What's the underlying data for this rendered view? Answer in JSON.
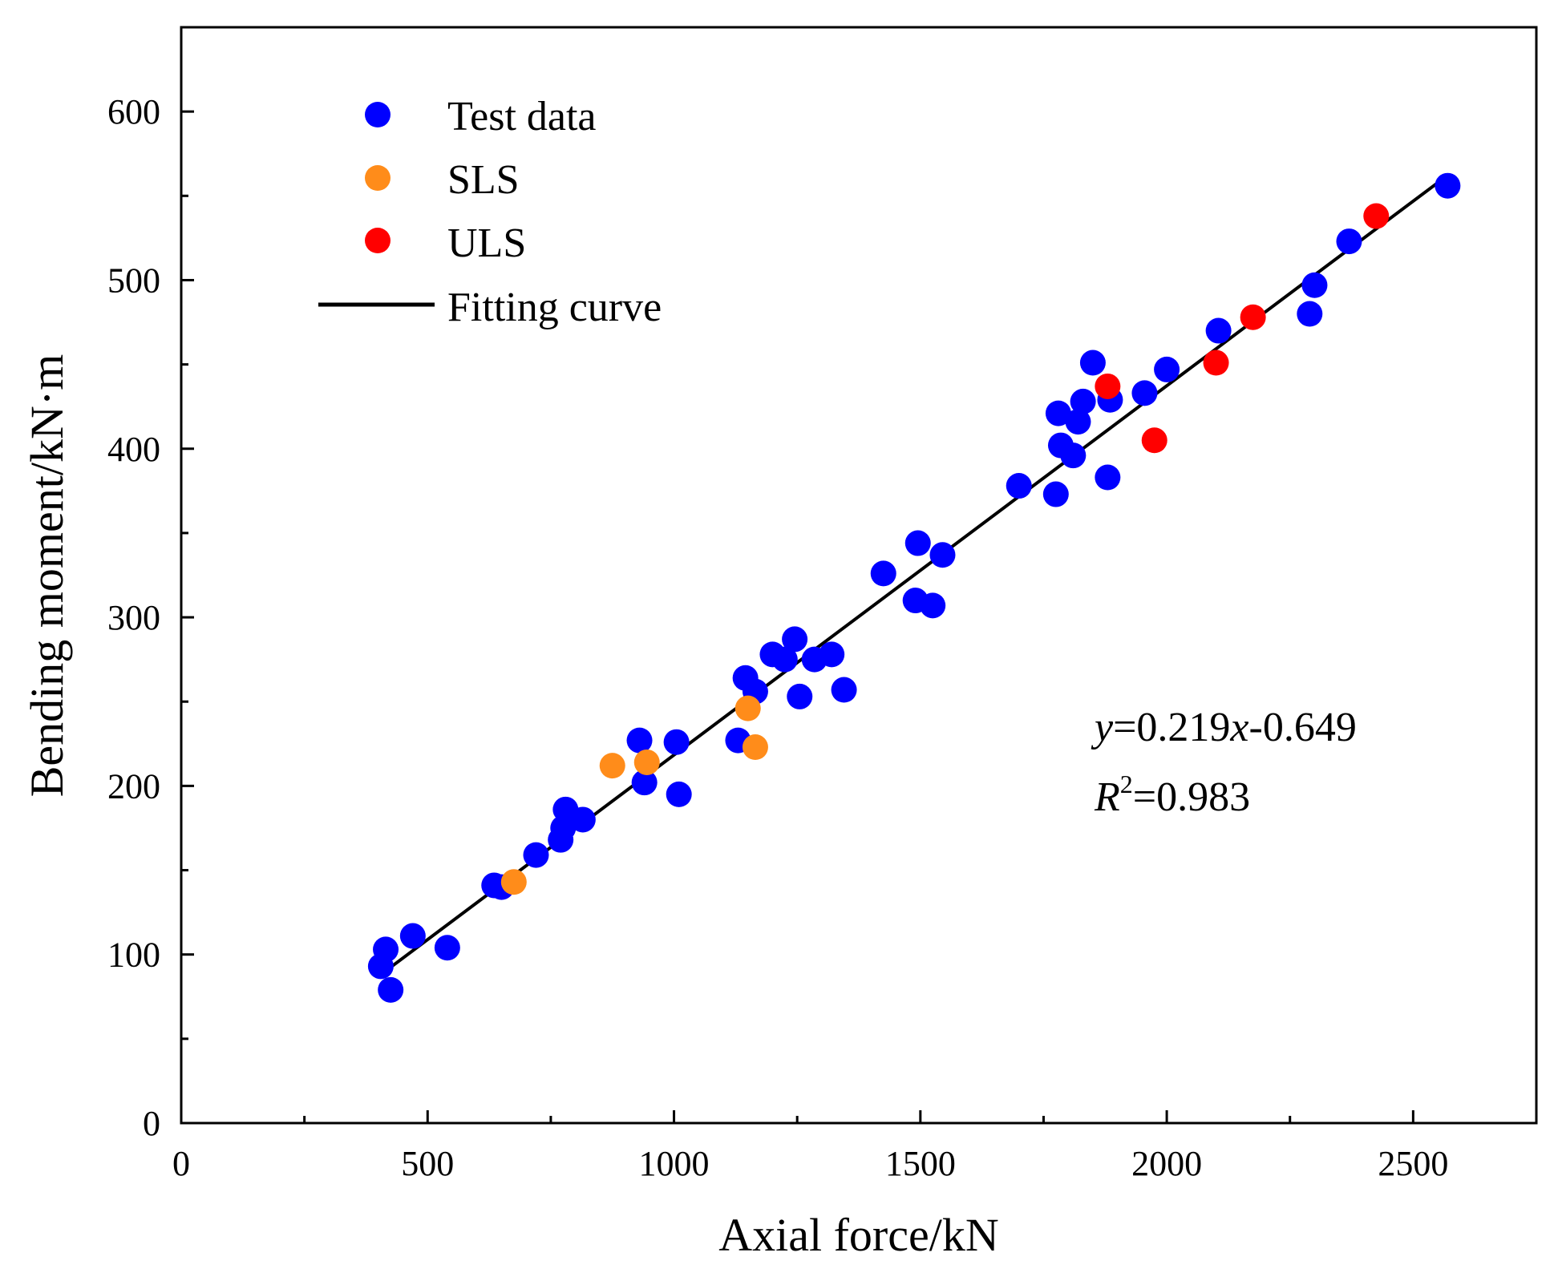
{
  "chart_data": {
    "type": "scatter",
    "title": "",
    "xlabel": "Axial force/kN",
    "ylabel": "Bending moment/kN·m",
    "xlim": [
      0,
      2750
    ],
    "ylim": [
      0,
      650
    ],
    "x_ticks": [
      0,
      500,
      1000,
      1500,
      2000,
      2500
    ],
    "y_ticks": [
      0,
      100,
      200,
      300,
      400,
      500,
      600
    ],
    "x_minor_ticks": [
      250,
      750,
      1250,
      1750,
      2250
    ],
    "y_minor_ticks": [
      50,
      150,
      250,
      350,
      450,
      550
    ],
    "grid": false,
    "legend_position": "top-left",
    "series": [
      {
        "name": "Test data",
        "color": "#0000FF",
        "points": [
          [
            405,
            93
          ],
          [
            415,
            103
          ],
          [
            425,
            79
          ],
          [
            470,
            111
          ],
          [
            540,
            104
          ],
          [
            635,
            141
          ],
          [
            650,
            140
          ],
          [
            720,
            159
          ],
          [
            770,
            168
          ],
          [
            775,
            175
          ],
          [
            780,
            186
          ],
          [
            815,
            180
          ],
          [
            930,
            227
          ],
          [
            940,
            202
          ],
          [
            1005,
            226
          ],
          [
            1010,
            195
          ],
          [
            1130,
            227
          ],
          [
            1145,
            264
          ],
          [
            1165,
            256
          ],
          [
            1200,
            278
          ],
          [
            1225,
            275
          ],
          [
            1245,
            287
          ],
          [
            1255,
            253
          ],
          [
            1285,
            275
          ],
          [
            1320,
            278
          ],
          [
            1345,
            257
          ],
          [
            1425,
            326
          ],
          [
            1490,
            310
          ],
          [
            1495,
            344
          ],
          [
            1525,
            307
          ],
          [
            1545,
            337
          ],
          [
            1700,
            378
          ],
          [
            1775,
            373
          ],
          [
            1780,
            421
          ],
          [
            1785,
            402
          ],
          [
            1810,
            396
          ],
          [
            1820,
            416
          ],
          [
            1830,
            428
          ],
          [
            1850,
            451
          ],
          [
            1880,
            383
          ],
          [
            1885,
            429
          ],
          [
            1955,
            433
          ],
          [
            2000,
            447
          ],
          [
            2105,
            470
          ],
          [
            2290,
            480
          ],
          [
            2300,
            497
          ],
          [
            2370,
            523
          ],
          [
            2570,
            556
          ]
        ]
      },
      {
        "name": "SLS",
        "color": "#FF8C1A",
        "points": [
          [
            675,
            143
          ],
          [
            875,
            212
          ],
          [
            945,
            214
          ],
          [
            1150,
            246
          ],
          [
            1165,
            223
          ]
        ]
      },
      {
        "name": "ULS",
        "color": "#FF0000",
        "points": [
          [
            1880,
            437
          ],
          [
            1975,
            405
          ],
          [
            2100,
            451
          ],
          [
            2175,
            478
          ],
          [
            2425,
            538
          ]
        ]
      }
    ],
    "fit_line": {
      "name": "Fitting curve",
      "color": "#000000",
      "x_range": [
        405,
        2570
      ],
      "slope": 0.219,
      "intercept": -0.649
    },
    "annotations": {
      "eq_y": "y",
      "eq_rest": "=0.219",
      "eq_x": "x",
      "eq_tail": "-0.649",
      "r_label": "R",
      "r_sup": "2",
      "r_rest": "=0.983"
    }
  }
}
